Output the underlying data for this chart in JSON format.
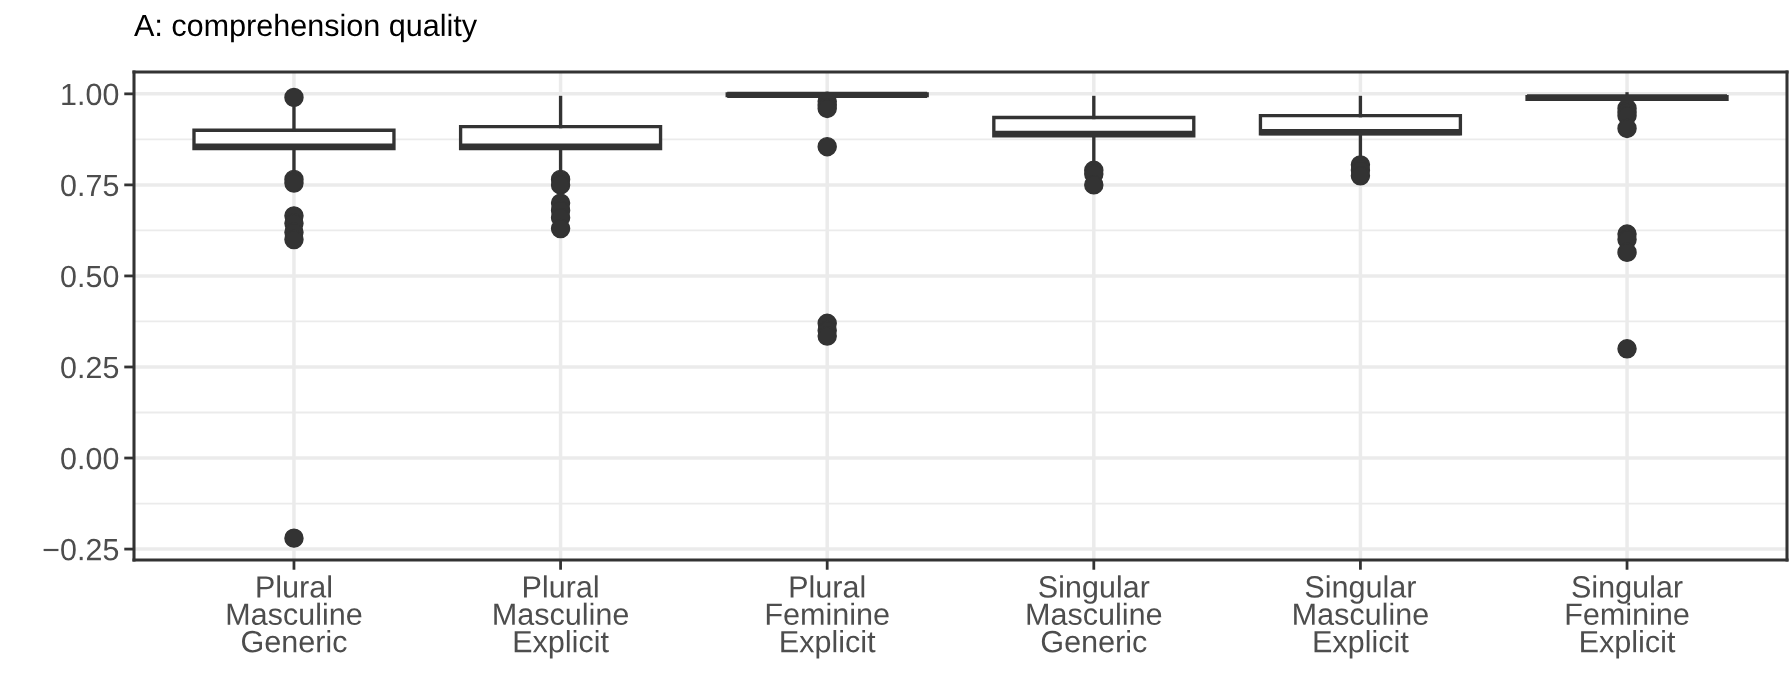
{
  "chart_data": {
    "type": "box",
    "title": "A: comprehension quality",
    "categories": [
      "Plural\nMasculine\nGeneric",
      "Plural\nMasculine\nExplicit",
      "Plural\nFeminine\nExplicit",
      "Singular\nMasculine\nGeneric",
      "Singular\nMasculine\nExplicit",
      "Singular\nFeminine\nExplicit"
    ],
    "boxes": [
      {
        "low": 0.78,
        "q1": 0.85,
        "median": 0.855,
        "q3": 0.9,
        "high": 0.96,
        "outliers": [
          0.99,
          0.765,
          0.755,
          0.665,
          0.645,
          0.62,
          0.6,
          -0.22
        ]
      },
      {
        "low": 0.77,
        "q1": 0.85,
        "median": 0.855,
        "q3": 0.91,
        "high": 0.99,
        "outliers": [
          0.765,
          0.75,
          0.7,
          0.68,
          0.66,
          0.63
        ]
      },
      {
        "low": 0.99,
        "q1": 0.995,
        "median": 0.997,
        "q3": 1.0,
        "high": 1.0,
        "outliers": [
          0.98,
          0.97,
          0.96,
          0.855,
          0.37,
          0.35,
          0.335
        ]
      },
      {
        "low": 0.8,
        "q1": 0.885,
        "median": 0.89,
        "q3": 0.935,
        "high": 0.99,
        "outliers": [
          0.79,
          0.78,
          0.75
        ]
      },
      {
        "low": 0.82,
        "q1": 0.89,
        "median": 0.895,
        "q3": 0.94,
        "high": 0.99,
        "outliers": [
          0.805,
          0.79,
          0.775
        ]
      },
      {
        "low": 0.98,
        "q1": 0.985,
        "median": 0.99,
        "q3": 0.992,
        "high": 1.0,
        "outliers": [
          0.96,
          0.95,
          0.94,
          0.905,
          0.615,
          0.6,
          0.565,
          0.3
        ]
      }
    ],
    "color": "#333333",
    "ylim": [
      -0.28,
      1.06
    ],
    "yticks": [
      {
        "value": -0.25,
        "label": "−0.25"
      },
      {
        "value": 0.0,
        "label": "0.00"
      },
      {
        "value": 0.25,
        "label": "0.25"
      },
      {
        "value": 0.5,
        "label": "0.50"
      },
      {
        "value": 0.75,
        "label": "0.75"
      },
      {
        "value": 1.0,
        "label": "1.00"
      }
    ],
    "grid": true
  }
}
